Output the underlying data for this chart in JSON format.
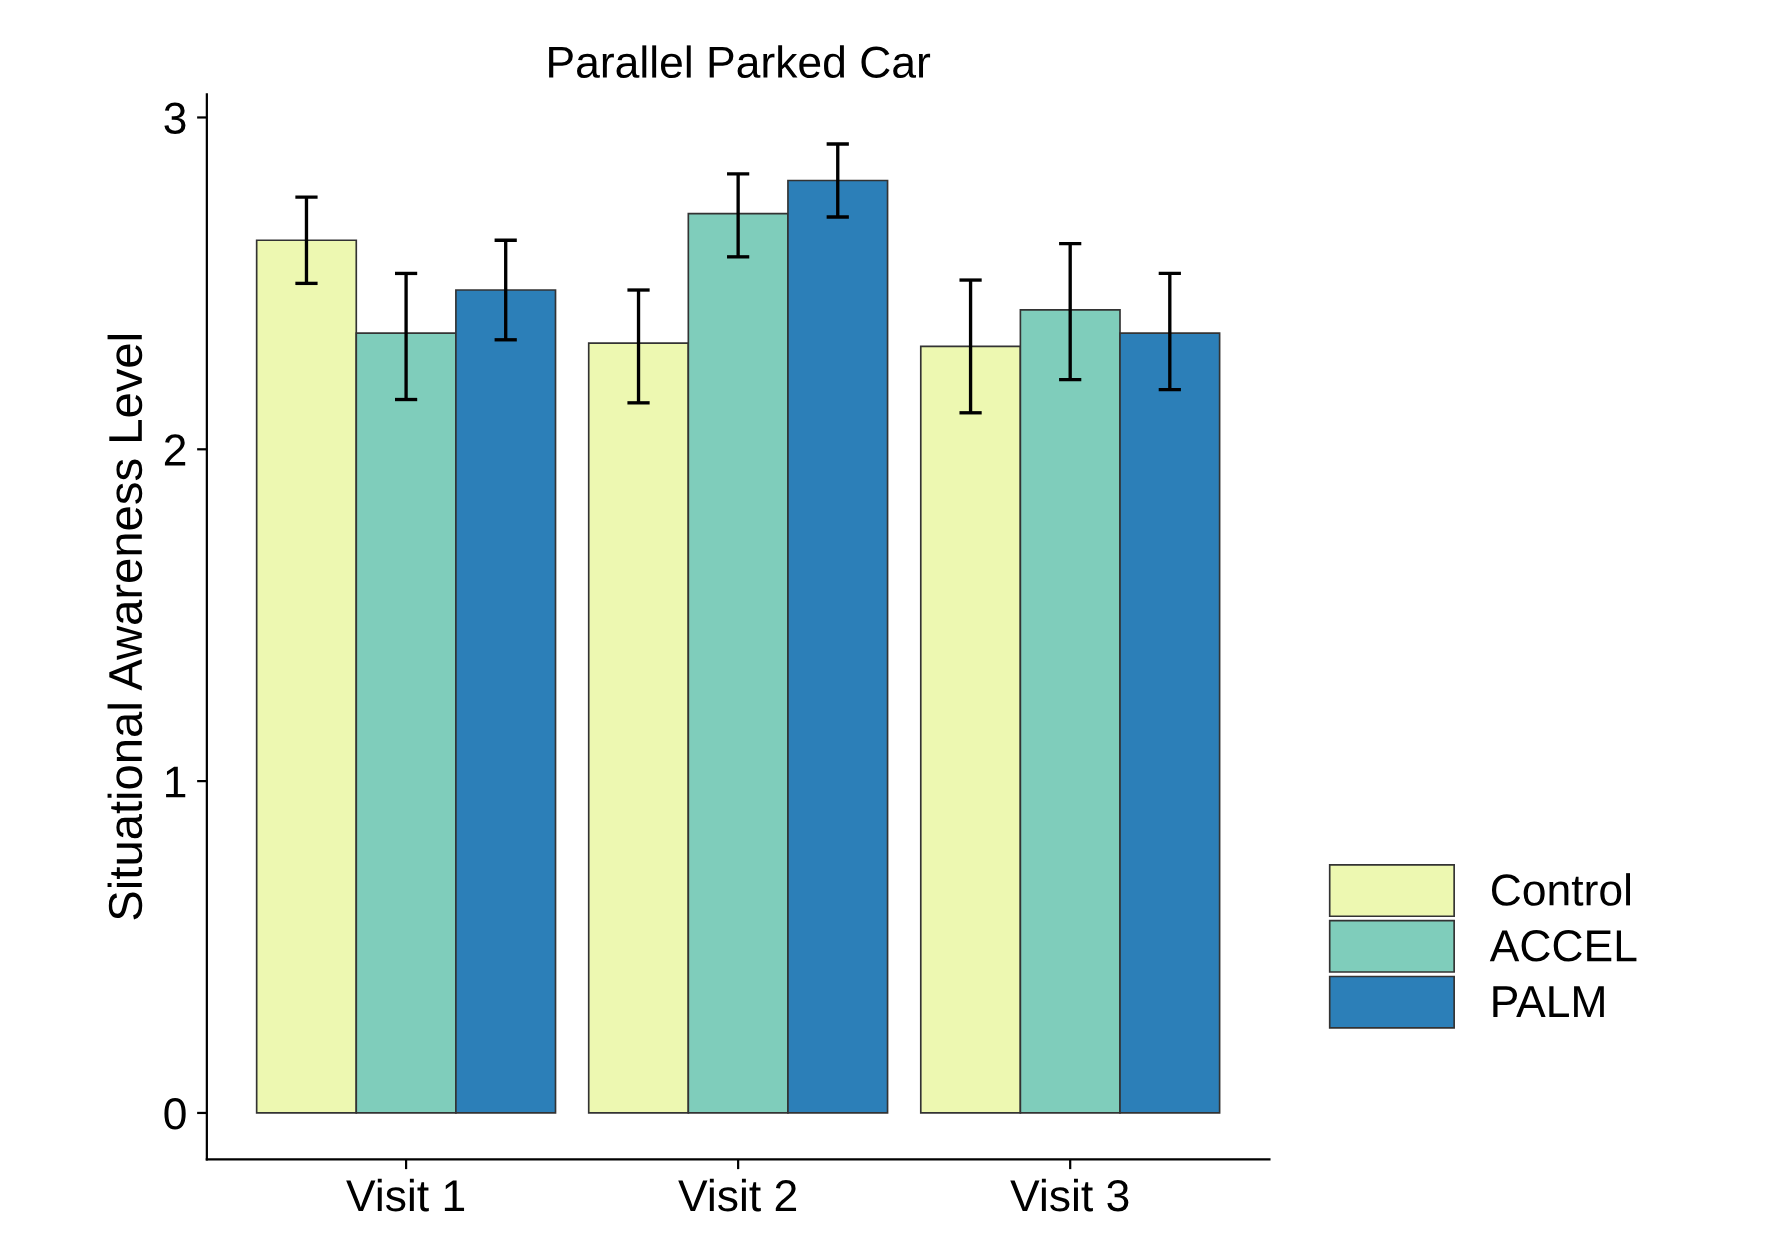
{
  "chart_data": {
    "type": "bar",
    "title": "Parallel Parked Car",
    "ylabel": "Situational Awareness Level",
    "categories": [
      "Visit 1",
      "Visit 2",
      "Visit 3"
    ],
    "series": [
      {
        "name": "Control",
        "color": "#edf8b1",
        "values": [
          2.63,
          2.32,
          2.31
        ],
        "errors": [
          [
            2.5,
            2.76
          ],
          [
            2.14,
            2.48
          ],
          [
            2.11,
            2.51
          ]
        ]
      },
      {
        "name": "ACCEL",
        "color": "#7fcdbb",
        "values": [
          2.35,
          2.71,
          2.42
        ],
        "errors": [
          [
            2.15,
            2.53
          ],
          [
            2.58,
            2.83
          ],
          [
            2.21,
            2.62
          ]
        ]
      },
      {
        "name": "PALM",
        "color": "#2c7fb8",
        "values": [
          2.48,
          2.81,
          2.35
        ],
        "errors": [
          [
            2.33,
            2.63
          ],
          [
            2.7,
            2.92
          ],
          [
            2.18,
            2.53
          ]
        ]
      }
    ],
    "ylim": [
      -0.14,
      3.07
    ],
    "yticks": [
      0,
      1,
      2,
      3
    ],
    "grid": false,
    "legend": "right"
  }
}
